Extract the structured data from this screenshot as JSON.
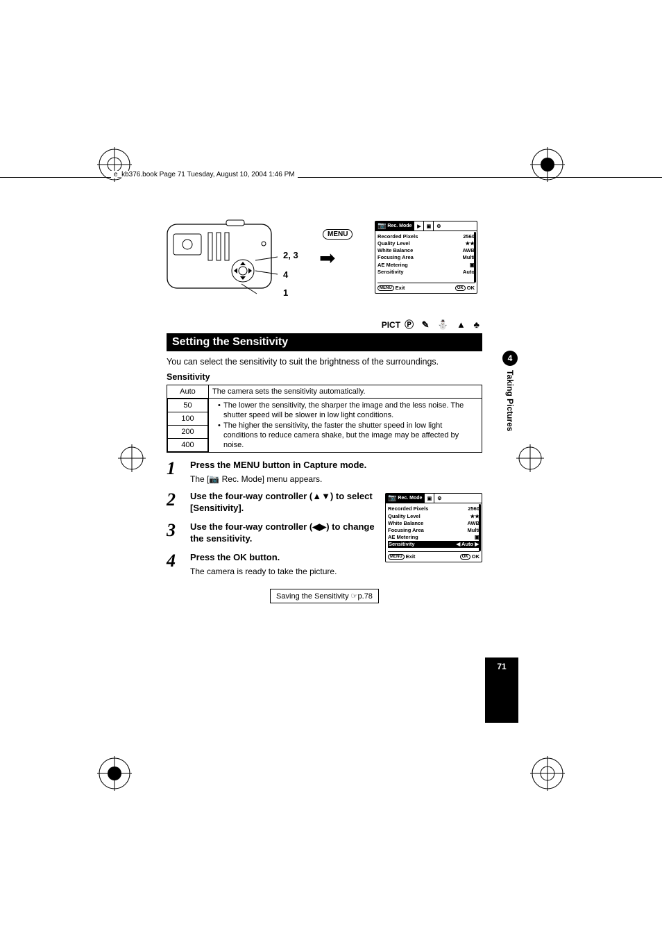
{
  "header_runner": "e_kb376.book  Page 71  Tuesday, August 10, 2004  1:46 PM",
  "figure": {
    "menu_button_label": "MENU",
    "callout_23": "2, 3",
    "callout_4": "4",
    "callout_1": "1"
  },
  "lcd_main": {
    "tab_active": "Rec. Mode",
    "rows": [
      {
        "label": "Recorded Pixels",
        "value": "2560"
      },
      {
        "label": "Quality Level",
        "value": "★★"
      },
      {
        "label": "White Balance",
        "value": "AWB"
      },
      {
        "label": "Focusing Area",
        "value": "Multi"
      },
      {
        "label": "AE Metering",
        "value": "▣"
      },
      {
        "label": "Sensitivity",
        "value": "Auto"
      }
    ],
    "footer_left_btn": "MENU",
    "footer_left": "Exit",
    "footer_right_btn": "OK",
    "footer_right": "OK"
  },
  "mode_row": {
    "pict": "PICT",
    "icons": "Ⓟ ✎ ⛄ ▲ ♣"
  },
  "heading": "Setting the Sensitivity",
  "intro": "You can select the sensitivity to suit the brightness of the surroundings.",
  "subhead": "Sensitivity",
  "table": {
    "auto_label": "Auto",
    "auto_desc": "The camera sets the sensitivity automatically.",
    "rows": [
      "50",
      "100",
      "200",
      "400"
    ],
    "bullet1": "The lower the sensitivity, the sharper the image and the less noise. The shutter speed will be slower in low light conditions.",
    "bullet2": "The higher the sensitivity, the faster the shutter speed in low light conditions to reduce camera shake, but the image may be affected by noise."
  },
  "steps": [
    {
      "num": "1",
      "title": "Press the MENU button in Capture mode.",
      "text": "The [📷 Rec. Mode] menu appears."
    },
    {
      "num": "2",
      "title": "Use the four-way controller (▲▼) to select [Sensitivity].",
      "text": ""
    },
    {
      "num": "3",
      "title": "Use the four-way controller (◀▶) to change the sensitivity.",
      "text": ""
    },
    {
      "num": "4",
      "title": "Press the OK button.",
      "text": "The camera is ready to take the picture."
    }
  ],
  "lcd_small": {
    "tab_active": "Rec. Mode",
    "rows": [
      {
        "label": "Recorded Pixels",
        "value": "2560"
      },
      {
        "label": "Quality Level",
        "value": "★★"
      },
      {
        "label": "White Balance",
        "value": "AWB"
      },
      {
        "label": "Focusing Area",
        "value": "Multi"
      },
      {
        "label": "AE Metering",
        "value": "▣"
      },
      {
        "label": "Sensitivity",
        "value": "◀  Auto ▶",
        "selected": true
      }
    ],
    "footer_left_btn": "MENU",
    "footer_left": "Exit",
    "footer_right_btn": "OK",
    "footer_right": "OK"
  },
  "save_ref": "Saving the Sensitivity ☞p.78",
  "side": {
    "chapter": "4",
    "label": "Taking Pictures"
  },
  "page_number": "71",
  "colors": {
    "bg": "#ffffff",
    "fg": "#000000"
  }
}
